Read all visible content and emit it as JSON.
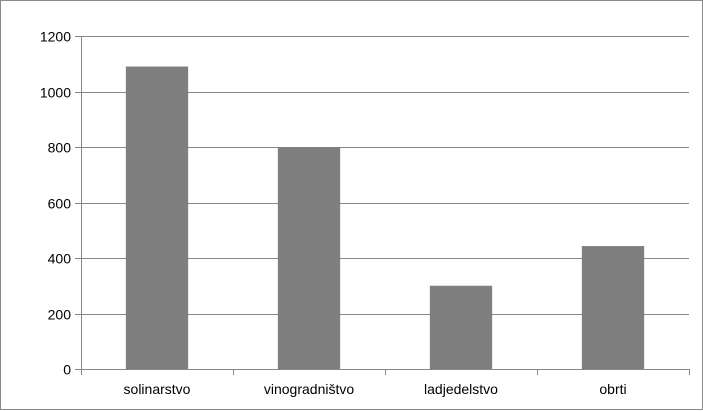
{
  "chart_data": {
    "type": "bar",
    "categories": [
      "solinarstvo",
      "vinogradništvo",
      "ladjedelstvo",
      "obrti"
    ],
    "series": [
      {
        "values": [
          1090,
          800,
          300,
          443
        ]
      }
    ],
    "ylim": [
      0,
      1200
    ],
    "yticks": [
      0,
      200,
      400,
      600,
      800,
      1000,
      1200
    ],
    "grid": true,
    "legend": "none",
    "bar_color": "#7f7f7f",
    "gridline_color": "#878787"
  }
}
